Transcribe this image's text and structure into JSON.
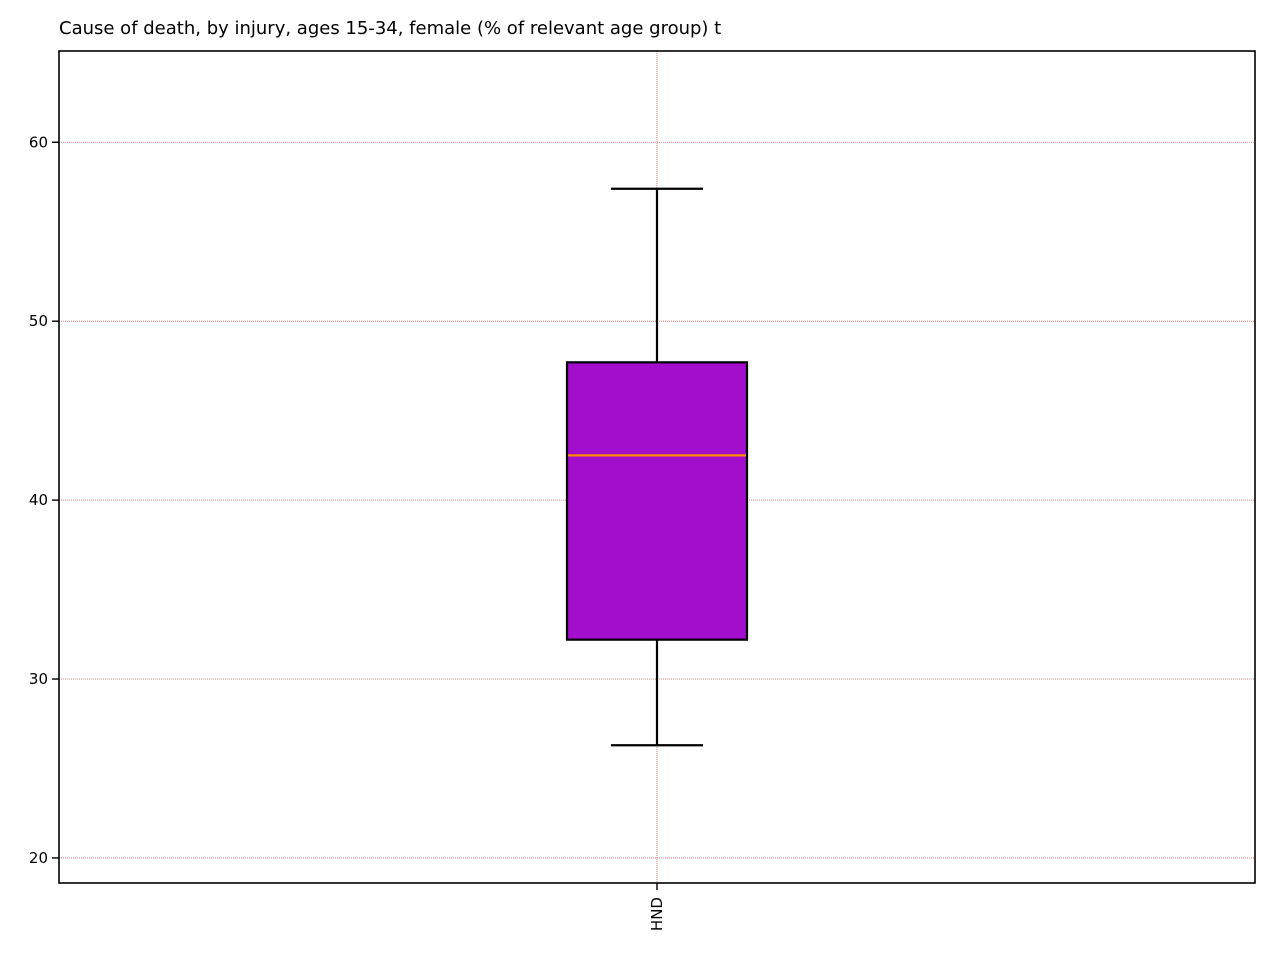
{
  "chart_data": {
    "type": "box",
    "title": "Cause of death, by injury, ages 15-34, female  (% of relevant age group) t",
    "xlabel": "",
    "ylabel": "",
    "categories": [
      "HND"
    ],
    "series": [
      {
        "whisker_low": 26.3,
        "q1": 32.2,
        "median": 42.5,
        "q3": 47.7,
        "whisker_high": 57.4
      }
    ],
    "ylim": [
      18.6,
      65.1
    ],
    "yticks": [
      20,
      30,
      40,
      50,
      60
    ],
    "grid": true,
    "colors": {
      "box_fill": "#a20ecb",
      "box_edge": "#000000",
      "median": "#ff8c00",
      "grid": "#e06060",
      "axes": "#000000"
    }
  }
}
